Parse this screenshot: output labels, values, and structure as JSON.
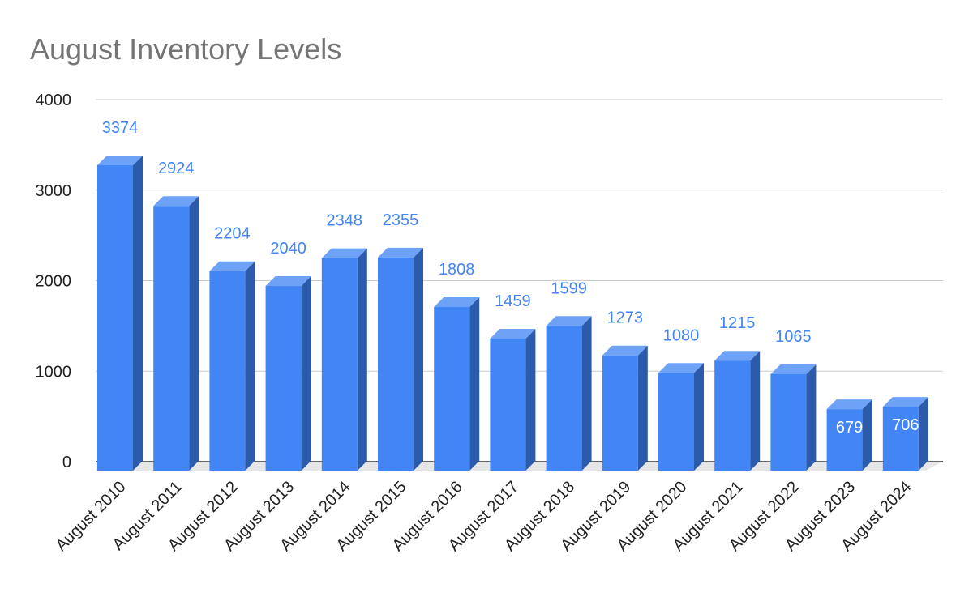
{
  "chart_data": {
    "type": "bar",
    "style": "3d-column",
    "title": "August Inventory Levels",
    "xlabel": "",
    "ylabel": "",
    "ylim": [
      0,
      4000
    ],
    "yticks": [
      0,
      1000,
      2000,
      3000,
      4000
    ],
    "grid": true,
    "legend": "none",
    "categories": [
      "August 2010",
      "August 2011",
      "August 2012",
      "August 2013",
      "August 2014",
      "August 2015",
      "August 2016",
      "August 2017",
      "August 2018",
      "August 2019",
      "August 2020",
      "August 2021",
      "August 2022",
      "August 2023",
      "August 2024"
    ],
    "values": [
      3374,
      2924,
      2204,
      2040,
      2348,
      2355,
      1808,
      1459,
      1599,
      1273,
      1080,
      1215,
      1065,
      679,
      706
    ],
    "data_labels_inside": [
      false,
      false,
      false,
      false,
      false,
      false,
      false,
      false,
      false,
      false,
      false,
      false,
      false,
      true,
      true
    ]
  },
  "colors": {
    "bar_front": "#4285f4",
    "bar_top": "#6ea2f7",
    "bar_side": "#2d5bab",
    "label_outside": "#4285f4",
    "label_inside": "#ffffff",
    "title": "#757575",
    "grid": "#cccccc",
    "floor": "#e6e6e6"
  }
}
